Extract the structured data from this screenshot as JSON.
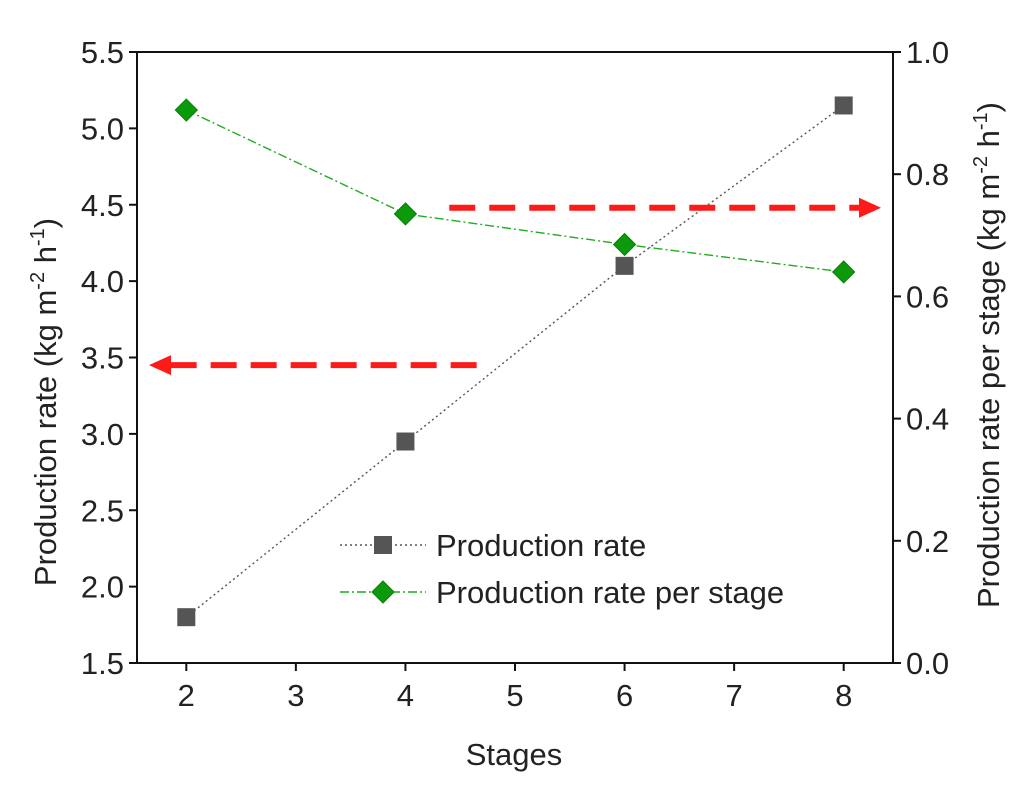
{
  "chart_data": {
    "type": "line",
    "xlabel": "Stages",
    "ylabel_left_main": "Production rate (kg m",
    "ylabel_left_sup1": "-2",
    "ylabel_left_mid": " h",
    "ylabel_left_sup2": "-1",
    "ylabel_left_end": ")",
    "ylabel_right_main": "Production rate per stage (kg m",
    "ylabel_right_sup1": "-2",
    "ylabel_right_mid": " h",
    "ylabel_right_sup2": "-1",
    "ylabel_right_end": ")",
    "x_ticks": [
      "2",
      "3",
      "4",
      "5",
      "6",
      "7",
      "8"
    ],
    "x_tick_values": [
      2,
      3,
      4,
      5,
      6,
      7,
      8
    ],
    "xlim": [
      1.55,
      8.45
    ],
    "y_left_ticks": [
      "1.5",
      "2.0",
      "2.5",
      "3.0",
      "3.5",
      "4.0",
      "4.5",
      "5.0",
      "5.5"
    ],
    "y_left_tick_values": [
      1.5,
      2.0,
      2.5,
      3.0,
      3.5,
      4.0,
      4.5,
      5.0,
      5.5
    ],
    "ylim_left": [
      1.5,
      5.5
    ],
    "y_right_ticks": [
      "0.0",
      "0.2",
      "0.4",
      "0.6",
      "0.8",
      "1.0"
    ],
    "y_right_tick_values": [
      0.0,
      0.2,
      0.4,
      0.6,
      0.8,
      1.0
    ],
    "ylim_right": [
      0.0,
      1.0
    ],
    "series": [
      {
        "name": "Production rate",
        "axis": "left",
        "x": [
          2,
          4,
          6,
          8
        ],
        "values": [
          1.8,
          2.95,
          4.1,
          5.15
        ],
        "marker": "square",
        "color": "#555555",
        "line_style": "dotted"
      },
      {
        "name": "Production rate per stage",
        "axis": "right",
        "x": [
          2,
          4,
          6,
          8
        ],
        "values": [
          0.905,
          0.735,
          0.685,
          0.64
        ],
        "marker": "diamond",
        "color": "#22aa22",
        "marker_color": "#0a9a0a",
        "line_style": "dash-dot"
      }
    ],
    "annotations": [
      {
        "type": "arrow",
        "direction": "left",
        "color": "#ff1a1a",
        "x_from": 4.65,
        "x_to": 1.55,
        "axis": "left",
        "y": 3.45
      },
      {
        "type": "arrow",
        "direction": "right",
        "color": "#ff1a1a",
        "x_from": 4.4,
        "x_to": 8.45,
        "axis": "right",
        "y": 0.745
      }
    ],
    "legend_position": "bottom-right",
    "grid": false
  }
}
